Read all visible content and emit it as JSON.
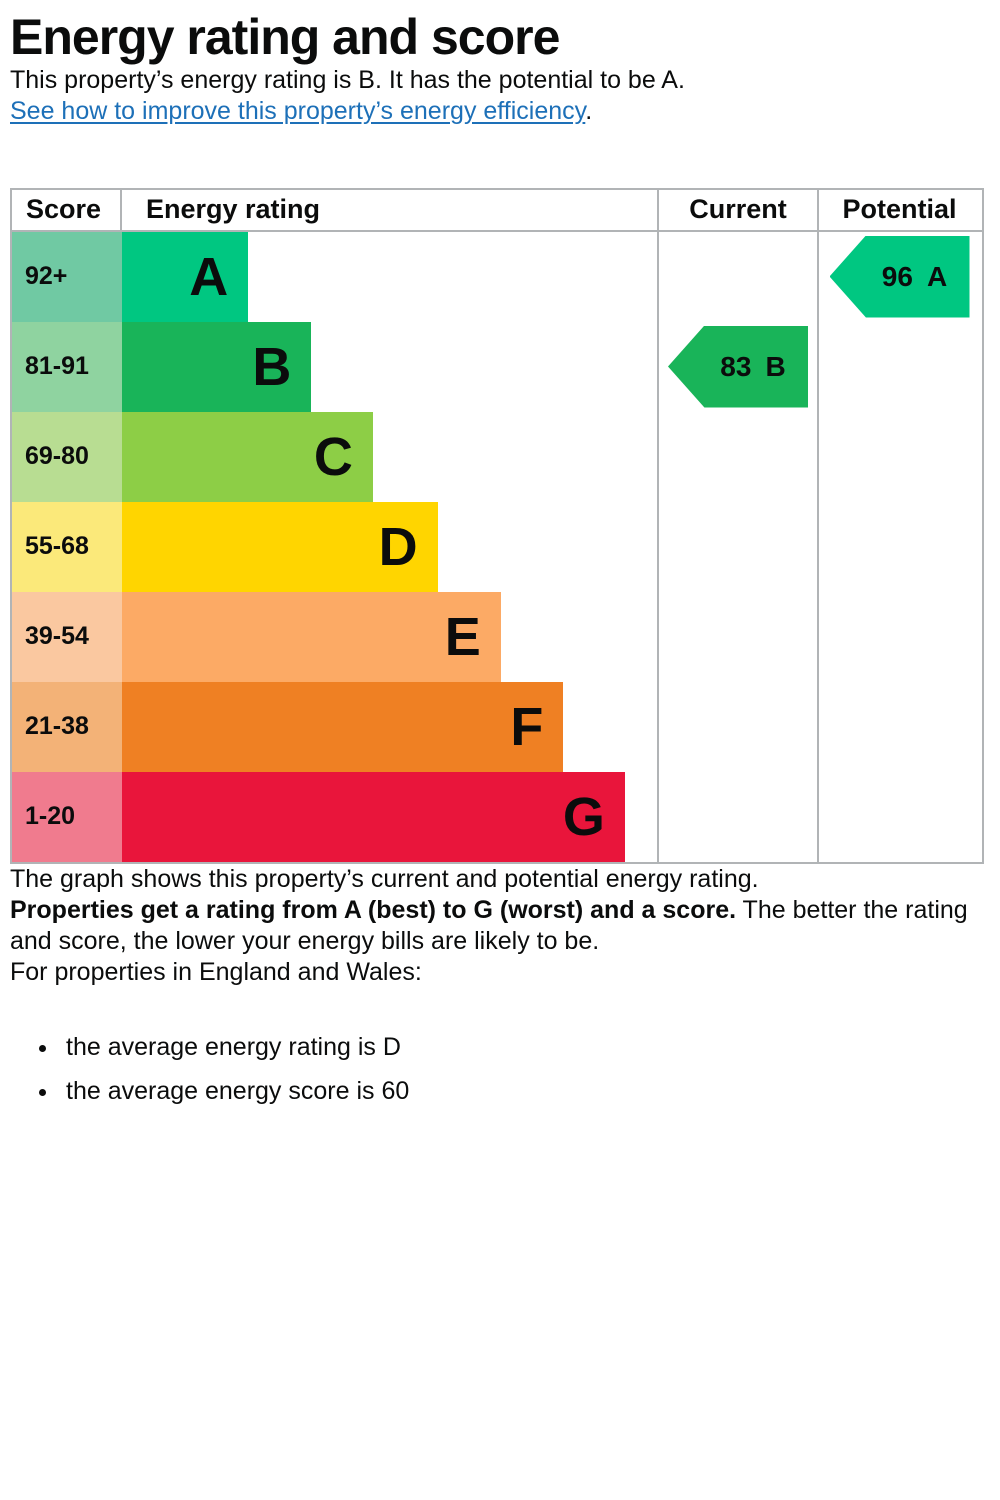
{
  "page": {
    "title": "Energy rating and score",
    "intro": "This property’s energy rating is B. It has the potential to be A.",
    "link_text": "See how to improve this property’s energy efficiency",
    "link_suffix": ".",
    "caption": "The graph shows this property’s current and potential energy rating.",
    "lead_bold": "Properties get a rating from A (best) to G (worst) and a score.",
    "lead_rest": "The better the rating and score, the lower your energy bills are likely to be.",
    "regions_heading": "For properties in England and Wales:",
    "bullets": [
      "the average energy rating is D",
      "the average energy score is 60"
    ]
  },
  "chart_data": {
    "type": "bar",
    "title": "Energy rating and score",
    "columns": [
      "Score",
      "Energy rating",
      "Current",
      "Potential"
    ],
    "bands": [
      {
        "score": "92+",
        "letter": "A",
        "color": "#00c781",
        "tint": "#70c9a3",
        "width_pct": 23.6
      },
      {
        "score": "81-91",
        "letter": "B",
        "color": "#19b459",
        "tint": "#8fd3a0",
        "width_pct": 35.4
      },
      {
        "score": "69-80",
        "letter": "C",
        "color": "#8dce46",
        "tint": "#b8dd92",
        "width_pct": 46.9
      },
      {
        "score": "55-68",
        "letter": "D",
        "color": "#ffd500",
        "tint": "#fbe97a",
        "width_pct": 59.0
      },
      {
        "score": "39-54",
        "letter": "E",
        "color": "#fcaa65",
        "tint": "#fac8a0",
        "width_pct": 70.8
      },
      {
        "score": "21-38",
        "letter": "F",
        "color": "#ef8023",
        "tint": "#f3b277",
        "width_pct": 82.5
      },
      {
        "score": "1-20",
        "letter": "G",
        "color": "#e9153b",
        "tint": "#f07b8e",
        "width_pct": 94.0
      }
    ],
    "current": {
      "value": "83",
      "letter": "B",
      "band_index": 1,
      "color": "#19b459"
    },
    "potential": {
      "value": "96",
      "letter": "A",
      "band_index": 0,
      "color": "#00c781"
    }
  },
  "colors": {
    "text": "#0b0c0c",
    "link": "#1d70b8",
    "table_border": "#b1b4b6"
  }
}
